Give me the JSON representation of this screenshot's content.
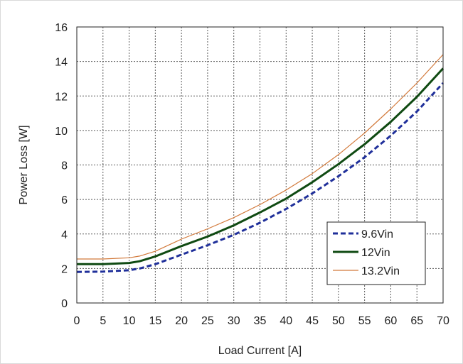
{
  "chart_data": {
    "type": "line",
    "title": "",
    "xlabel": "Load Current [A]",
    "ylabel": "Power Loss [W]",
    "xlim": [
      0,
      70
    ],
    "ylim": [
      0,
      16
    ],
    "x_ticks": [
      0,
      5,
      10,
      15,
      20,
      25,
      30,
      35,
      40,
      45,
      50,
      55,
      60,
      65,
      70
    ],
    "y_ticks": [
      0,
      2,
      4,
      6,
      8,
      10,
      12,
      14,
      16
    ],
    "grid": true,
    "legend_position": "bottom-right",
    "series": [
      {
        "name": "9.6Vin",
        "color": "#1f2f9a",
        "style": "dashed",
        "x": [
          0,
          5,
          10,
          12,
          15,
          20,
          25,
          30,
          35,
          40,
          45,
          50,
          55,
          60,
          65,
          70
        ],
        "values": [
          1.8,
          1.82,
          1.9,
          2.0,
          2.25,
          2.8,
          3.35,
          3.95,
          4.65,
          5.45,
          6.35,
          7.35,
          8.45,
          9.7,
          11.1,
          12.75
        ]
      },
      {
        "name": "12Vin",
        "color": "#0f4a12",
        "style": "solid",
        "x": [
          0,
          5,
          10,
          12,
          15,
          20,
          25,
          30,
          35,
          40,
          45,
          50,
          55,
          60,
          65,
          70
        ],
        "values": [
          2.25,
          2.25,
          2.32,
          2.42,
          2.7,
          3.3,
          3.85,
          4.5,
          5.25,
          6.05,
          7.0,
          8.05,
          9.2,
          10.5,
          11.95,
          13.6
        ]
      },
      {
        "name": "13.2Vin",
        "color": "#d2793a",
        "style": "solid",
        "x": [
          0,
          5,
          10,
          12,
          15,
          20,
          25,
          30,
          35,
          40,
          45,
          50,
          55,
          60,
          65,
          70
        ],
        "values": [
          2.55,
          2.55,
          2.62,
          2.72,
          3.0,
          3.7,
          4.3,
          4.95,
          5.7,
          6.55,
          7.5,
          8.6,
          9.85,
          11.25,
          12.75,
          14.4
        ]
      }
    ]
  }
}
